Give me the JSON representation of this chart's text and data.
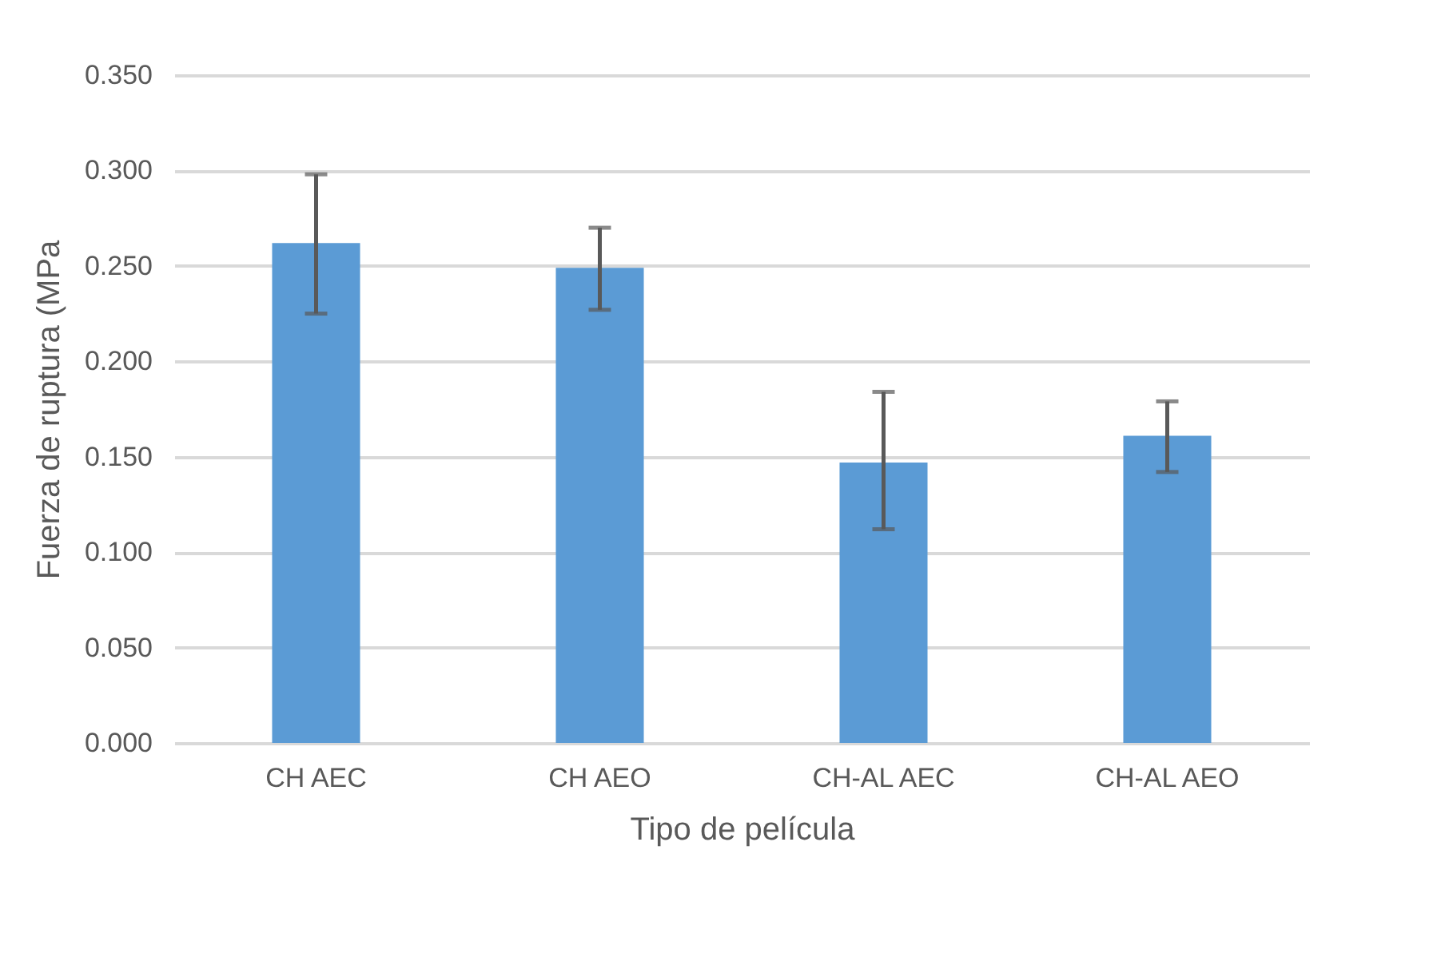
{
  "chart_data": {
    "type": "bar",
    "xlabel": "Tipo de película",
    "ylabel": "Fuerza de ruptura (MPa",
    "categories": [
      "CH AEC",
      "CH AEO",
      "CH-AL AEC",
      "CH-AL AEO"
    ],
    "values": [
      0.262,
      0.249,
      0.147,
      0.161
    ],
    "errors": [
      [
        0.225,
        0.298
      ],
      [
        0.227,
        0.27
      ],
      [
        0.112,
        0.184
      ],
      [
        0.142,
        0.179
      ]
    ],
    "color": "#5b9bd5",
    "ylim": [
      0,
      0.35
    ],
    "yticks": [
      {
        "value": 0,
        "label": "0.000"
      },
      {
        "value": 0.05,
        "label": "0.050"
      },
      {
        "value": 0.1,
        "label": "0.100"
      },
      {
        "value": 0.15,
        "label": "0.150"
      },
      {
        "value": 0.2,
        "label": "0.200"
      },
      {
        "value": 0.25,
        "label": "0.250"
      },
      {
        "value": 0.3,
        "label": "0.300"
      },
      {
        "value": 0.35,
        "label": "0.350"
      }
    ],
    "grid": "y"
  }
}
